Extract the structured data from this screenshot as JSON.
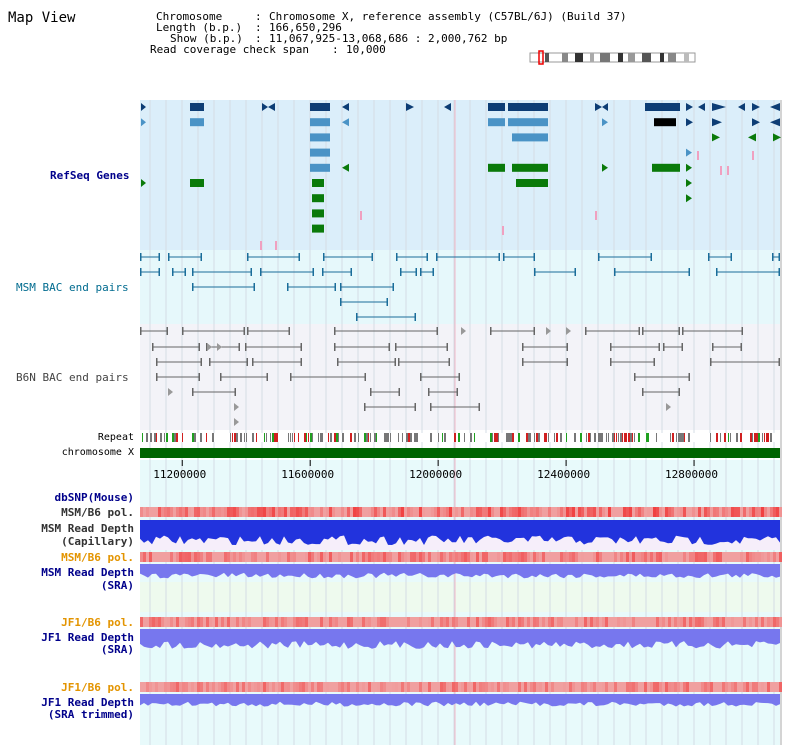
{
  "title": "Map View",
  "info": {
    "chromosome_key": "Chromosome",
    "chromosome_val": "Chromosome X, reference assembly (C57BL/6J) (Build 37)",
    "length_key": "Length (b.p.)",
    "length_val": "166,650,296",
    "show_key": "Show (b.p.)",
    "show_val": "11,067,925-13,068,686 : 2,000,762 bp",
    "span_key": "Read coverage check span",
    "span_val": "10,000"
  },
  "tracks": {
    "refseq": "RefSeq Genes",
    "msm_bac": "MSM BAC end pairs",
    "b6n_bac": "B6N BAC end pairs",
    "repeat": "Repeat",
    "chromosome": "chromosome X",
    "dbsnp": "dbSNP(Mouse)",
    "msm_b6_pol_1": "MSM/B6 pol.",
    "msm_read_depth_cap_1": "MSM Read Depth",
    "msm_read_depth_cap_2": "(Capillary)",
    "msm_b6_pol_2": "MSM/B6 pol.",
    "msm_read_depth_sra_1": "MSM Read Depth",
    "msm_read_depth_sra_2": "(SRA)",
    "jf1_b6_pol_1": "JF1/B6 pol.",
    "jf1_read_depth_1": "JF1 Read Depth",
    "jf1_read_depth_2": "(SRA)",
    "jf1_b6_pol_2": "JF1/B6 pol.",
    "jf1_read_depth_trim_1": "JF1 Read Depth",
    "jf1_read_depth_trim_2": "(SRA trimmed)"
  },
  "axis": {
    "ticks": [
      {
        "label": "11200000",
        "value": 11200000
      },
      {
        "label": "11600000",
        "value": 11600000
      },
      {
        "label": "12000000",
        "value": 12000000
      },
      {
        "label": "12400000",
        "value": 12400000
      },
      {
        "label": "12800000",
        "value": 12800000
      }
    ],
    "range": [
      11067925,
      13068686
    ]
  },
  "colors": {
    "refseq_bg": "#dbeefa",
    "msm_bac_bg": "#e6f8fb",
    "b6n_bac_bg": "#f3f3f8",
    "lower_bg": "#e8fafb",
    "gene_dark": "#0d3d75",
    "gene_mid": "#4a93c6",
    "gene_green": "#0a7a0a",
    "chromosome_bar": "#006400",
    "depth_capillary": "#2233dd",
    "depth_sra": "#7777ee",
    "pol_red": "#ee3333"
  }
}
